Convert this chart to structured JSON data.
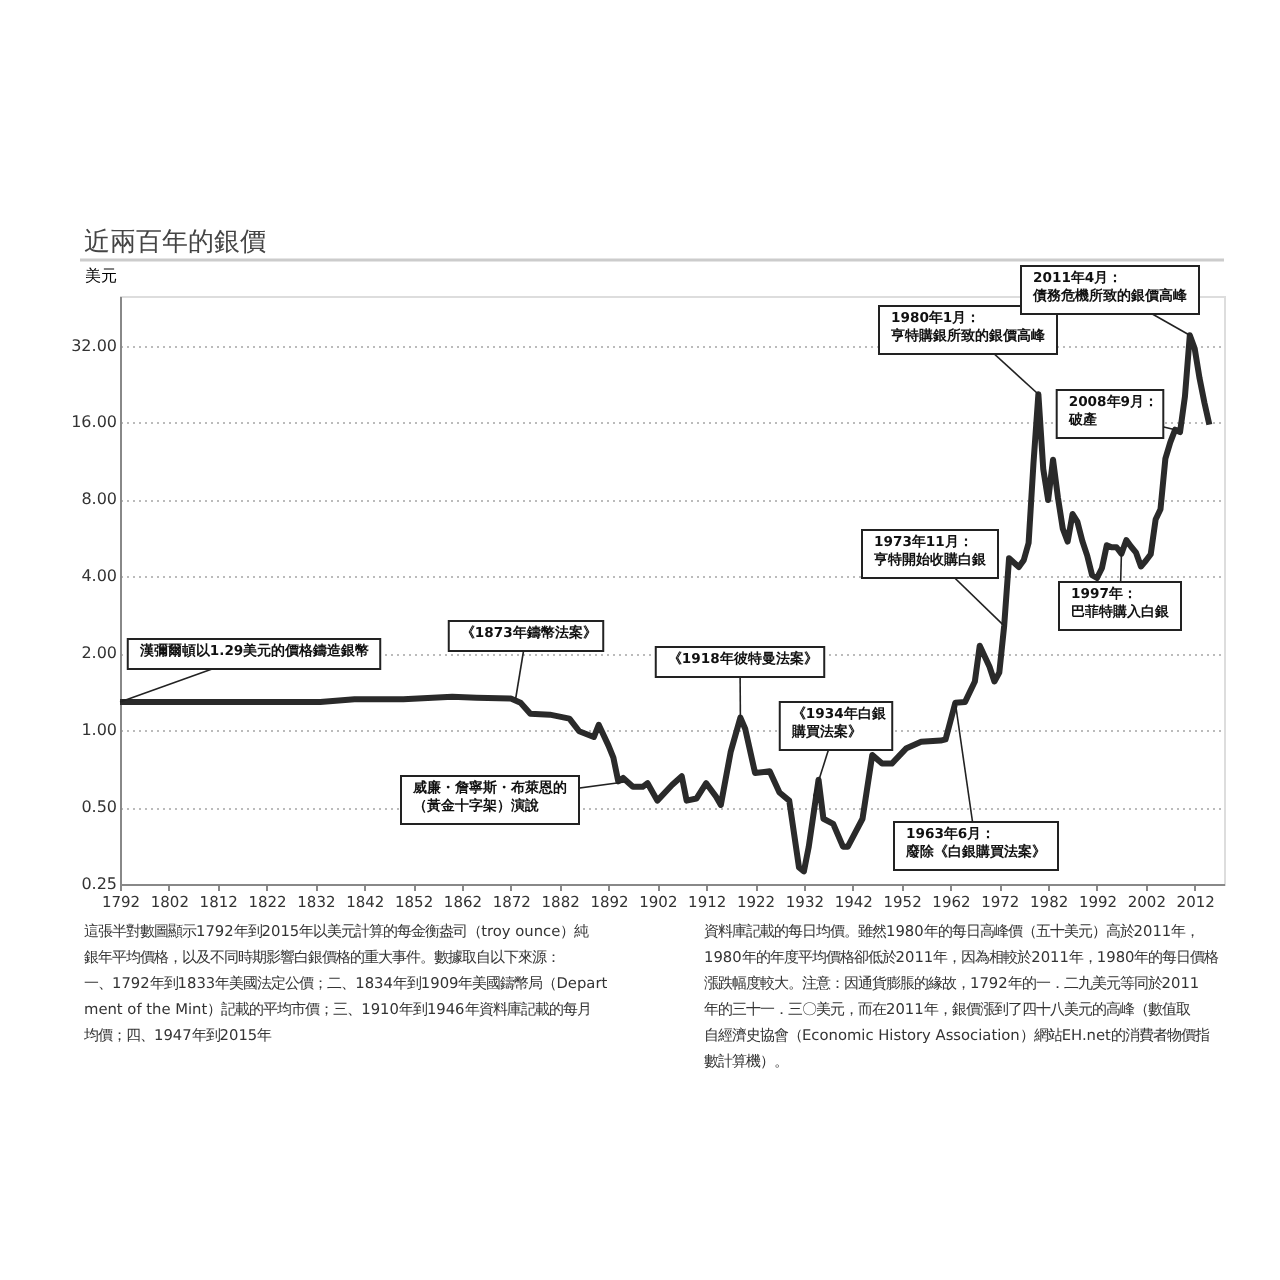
{
  "chart_data": {
    "type": "line",
    "title": "近兩百年的銀價",
    "ylabel": "美元",
    "log": "y",
    "grid": "y",
    "xlim": [
      1792,
      2018
    ],
    "xticks": [
      1792,
      1802,
      1812,
      1822,
      1832,
      1842,
      1852,
      1862,
      1872,
      1882,
      1892,
      1902,
      1912,
      1922,
      1932,
      1942,
      1952,
      1962,
      1972,
      1982,
      1992,
      2002,
      2012
    ],
    "ylim": [
      0.25,
      50
    ],
    "yticks": [
      {
        "value": 0.25,
        "label": "0.25"
      },
      {
        "value": 0.5,
        "label": "0.50"
      },
      {
        "value": 1,
        "label": "1.00"
      },
      {
        "value": 2,
        "label": "2.00"
      },
      {
        "value": 4,
        "label": "4.00"
      },
      {
        "value": 8,
        "label": "8.00"
      },
      {
        "value": 16,
        "label": "16.00"
      },
      {
        "value": 32,
        "label": "32.00"
      }
    ],
    "series": [
      {
        "color": "#2a2a2a",
        "x": [
          1792,
          1833,
          1840,
          1850,
          1856,
          1860,
          1865,
          1872,
          1874,
          1876,
          1880,
          1884,
          1886,
          1889,
          1890,
          1892,
          1893,
          1894,
          1895,
          1897,
          1899,
          1900,
          1902,
          1905,
          1907,
          1908,
          1910,
          1912,
          1914,
          1915,
          1917,
          1919,
          1920,
          1922,
          1925,
          1927,
          1929,
          1931,
          1932,
          1933,
          1935,
          1936,
          1938,
          1940,
          1941,
          1944,
          1946,
          1948,
          1950,
          1953,
          1956,
          1960,
          1961,
          1963,
          1965,
          1967,
          1968,
          1970,
          1971,
          1972,
          1973,
          1974,
          1976,
          1977,
          1978,
          1979,
          1980,
          1981,
          1982,
          1983,
          1984,
          1985,
          1986,
          1987,
          1988,
          1989,
          1990,
          1991,
          1992,
          1993,
          1994,
          1995,
          1996,
          1997,
          1998,
          1999,
          2000,
          2001,
          2002,
          2003,
          2004,
          2005,
          2006,
          2007,
          2008,
          2009,
          2010,
          2011,
          2012,
          2013,
          2014,
          2015
        ],
        "values": [
          1.29,
          1.29,
          1.32,
          1.32,
          1.34,
          1.35,
          1.34,
          1.33,
          1.28,
          1.16,
          1.15,
          1.11,
          0.99,
          0.94,
          1.05,
          0.87,
          0.78,
          0.63,
          0.65,
          0.6,
          0.6,
          0.62,
          0.53,
          0.61,
          0.66,
          0.53,
          0.54,
          0.62,
          0.55,
          0.51,
          0.82,
          1.12,
          1.01,
          0.68,
          0.69,
          0.57,
          0.53,
          0.29,
          0.28,
          0.35,
          0.64,
          0.45,
          0.43,
          0.35,
          0.35,
          0.45,
          0.8,
          0.74,
          0.74,
          0.85,
          0.9,
          0.91,
          0.92,
          1.28,
          1.29,
          1.55,
          2.14,
          1.77,
          1.55,
          1.68,
          2.56,
          4.71,
          4.35,
          4.62,
          5.4,
          11.09,
          20.63,
          10.52,
          7.95,
          11.44,
          8.14,
          6.14,
          5.47,
          7.01,
          6.53,
          5.5,
          4.82,
          4.04,
          3.94,
          4.3,
          5.29,
          5.2,
          5.2,
          4.9,
          5.54,
          5.22,
          4.95,
          4.37,
          4.6,
          4.88,
          6.67,
          7.32,
          11.55,
          13.38,
          14.99,
          14.67,
          20.19,
          35.12,
          31.15,
          23.79,
          19.08,
          15.68
        ]
      }
    ],
    "annotations": [
      {
        "text": "漢彌爾頓以1.29美元的價格鑄造銀幣",
        "x": 1792,
        "y": 1.29
      },
      {
        "text": "《1873年鑄幣法案》",
        "x": 1873,
        "y": 1.33
      },
      {
        "text": "威廉・詹寧斯・布萊恩的（黃金十字架）演說",
        "x": 1896,
        "y": 0.63
      },
      {
        "text": "《1918年彼特曼法案》",
        "x": 1919,
        "y": 1.12
      },
      {
        "text": "《1934年白銀購買法案》",
        "x": 1934,
        "y": 0.55
      },
      {
        "text": "1963年6月：廢除《白銀購買法案》",
        "x": 1963,
        "y": 1.28
      },
      {
        "text": "1973年11月：亨特開始收購白銀",
        "x": 1973,
        "y": 2.56
      },
      {
        "text": "1980年1月：亨特購銀所致的銀價高峰",
        "x": 1980,
        "y": 20.63
      },
      {
        "text": "2008年9月：破產",
        "x": 2008,
        "y": 14.99
      },
      {
        "text": "1997年：巴菲特購入白銀",
        "x": 1997,
        "y": 4.9
      },
      {
        "text": "2011年4月：債務危機所致的銀價高峰",
        "x": 2011,
        "y": 35.12
      },
      "這張半對數圖顯示1792年到2015年以美元計算的每金衡盎司（troy ounce）純銀年平均價格，以及不同時期影響白銀價格的重大事件。數據取自以下來源：一、1792年到1833年美國法定公價；二、1834年到1909年美國鑄幣局（Department of the Mint）記載的平均市價；三、1910年到1946年資料庫記載的每月均價；四、1947年到2015年",
      "資料庫記載的每日均價。雖然1980年的每日高峰價（五十美元）高於2011年，1980年的年度平均價格卻低於2011年，因為相較於2011年，1980年的每日價格漲跌幅度較大。注意：因通貨膨脹的緣故，1792年的一．二九美元等同於2011年的三十一．三〇美元，而在2011年，銀價漲到了四十八美元的高峰（數值取自經濟史協會（Economic History Association）網站EH.net的消費者物價指數計算機）。"
    ]
  }
}
